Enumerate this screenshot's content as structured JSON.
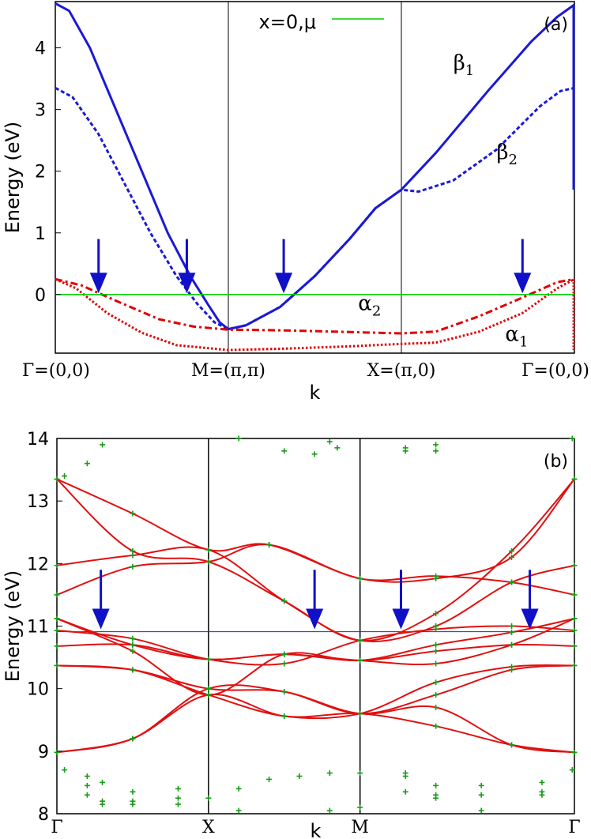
{
  "chart_data": [
    {
      "panel_label": "(a)",
      "type": "line",
      "xlabel": "k",
      "ylabel": "Energy (eV)",
      "ylim": [
        -0.95,
        4.75
      ],
      "yticks": [
        "0",
        "1",
        "2",
        "3",
        "4"
      ],
      "ytick_values": [
        0,
        1,
        2,
        3,
        4
      ],
      "kpoint_labels": [
        "Γ=(0,0)",
        "M=(π,π)",
        "X=(π,0)",
        "Γ=(0,0)"
      ],
      "kpoint_positions": [
        0,
        1,
        2,
        3
      ],
      "legend": {
        "label": "x=0,μ",
        "color": "#00d000",
        "placement": "top-center"
      },
      "series": [
        {
          "name": "β1",
          "color": "#1a1ad6",
          "style": "solid",
          "sub": "1",
          "points": [
            [
              0,
              4.72
            ],
            [
              0.08,
              4.6
            ],
            [
              0.2,
              4.0
            ],
            [
              0.35,
              3.0
            ],
            [
              0.5,
              2.0
            ],
            [
              0.65,
              1.0
            ],
            [
              0.78,
              0.3
            ],
            [
              0.88,
              -0.15
            ],
            [
              0.95,
              -0.45
            ],
            [
              1.0,
              -0.56
            ],
            [
              1.1,
              -0.5
            ],
            [
              1.3,
              -0.2
            ],
            [
              1.5,
              0.3
            ],
            [
              1.7,
              0.9
            ],
            [
              1.85,
              1.4
            ],
            [
              2.0,
              1.7
            ],
            [
              2.2,
              2.3
            ],
            [
              2.5,
              3.3
            ],
            [
              2.75,
              4.1
            ],
            [
              2.9,
              4.5
            ],
            [
              3.0,
              4.7
            ]
          ]
        },
        {
          "name": "β2",
          "color": "#1a1ad6",
          "style": "dashed",
          "sub": "2",
          "points": [
            [
              0,
              3.35
            ],
            [
              0.1,
              3.2
            ],
            [
              0.25,
              2.6
            ],
            [
              0.4,
              1.8
            ],
            [
              0.55,
              1.0
            ],
            [
              0.7,
              0.3
            ],
            [
              0.82,
              -0.15
            ],
            [
              0.92,
              -0.45
            ],
            [
              1.0,
              -0.56
            ],
            [
              1.1,
              -0.5
            ],
            [
              1.3,
              -0.2
            ],
            [
              1.5,
              0.3
            ],
            [
              1.7,
              0.9
            ],
            [
              1.85,
              1.4
            ],
            [
              2.0,
              1.7
            ],
            [
              2.1,
              1.67
            ],
            [
              2.3,
              1.85
            ],
            [
              2.55,
              2.35
            ],
            [
              2.8,
              3.05
            ],
            [
              2.92,
              3.3
            ],
            [
              3.0,
              3.35
            ]
          ]
        },
        {
          "name": "α2",
          "color": "#e00000",
          "style": "dashdot",
          "sub": "2",
          "points": [
            [
              0,
              0.25
            ],
            [
              0.15,
              0.15
            ],
            [
              0.35,
              -0.1
            ],
            [
              0.6,
              -0.4
            ],
            [
              0.8,
              -0.52
            ],
            [
              1.0,
              -0.57
            ],
            [
              1.3,
              -0.58
            ],
            [
              1.6,
              -0.6
            ],
            [
              2.0,
              -0.63
            ],
            [
              2.2,
              -0.6
            ],
            [
              2.45,
              -0.35
            ],
            [
              2.7,
              -0.05
            ],
            [
              2.9,
              0.2
            ],
            [
              3.0,
              0.25
            ]
          ]
        },
        {
          "name": "α1",
          "color": "#e00000",
          "style": "dotted",
          "sub": "1",
          "points": [
            [
              0,
              0.25
            ],
            [
              0.12,
              0.1
            ],
            [
              0.3,
              -0.3
            ],
            [
              0.5,
              -0.62
            ],
            [
              0.7,
              -0.82
            ],
            [
              1.0,
              -0.9
            ],
            [
              1.3,
              -0.88
            ],
            [
              1.7,
              -0.84
            ],
            [
              2.0,
              -0.8
            ],
            [
              2.2,
              -0.78
            ],
            [
              2.45,
              -0.6
            ],
            [
              2.7,
              -0.3
            ],
            [
              2.9,
              0.1
            ],
            [
              3.0,
              0.25
            ]
          ]
        },
        {
          "name": "μ",
          "color": "#00d000",
          "style": "solid",
          "points": [
            [
              0,
              0
            ],
            [
              3.0,
              0
            ]
          ]
        }
      ],
      "arrow_kpos": [
        0.25,
        0.76,
        1.32,
        2.7
      ],
      "arrow_top": 0.9,
      "arrow_bottom": 0.02,
      "annotations": [
        {
          "base": "β",
          "sub": "1",
          "at": [
            2.3,
            3.65
          ]
        },
        {
          "base": "β",
          "sub": "2",
          "at": [
            2.55,
            2.2
          ]
        },
        {
          "base": "α",
          "sub": "2",
          "at": [
            1.75,
            -0.25
          ]
        },
        {
          "base": "α",
          "sub": "1",
          "at": [
            2.6,
            -0.75
          ]
        }
      ]
    },
    {
      "panel_label": "(b)",
      "type": "line",
      "xlabel": "k",
      "ylabel": "Energy (eV)",
      "ylim": [
        8,
        14
      ],
      "yticks": [
        "8",
        "9",
        "10",
        "11",
        "12",
        "13",
        "14"
      ],
      "ytick_values": [
        8,
        9,
        10,
        11,
        12,
        13,
        14
      ],
      "kpoint_labels": [
        "Γ",
        "X",
        "M",
        "Γ"
      ],
      "kpoint_positions": [
        0,
        1,
        2,
        3.4142
      ],
      "fermi_level": 10.91,
      "fermi_color": "#2020d0",
      "band_color": "#e01010",
      "marker_color": "#1a9a1a",
      "bands": [
        [
          [
            0,
            13.35
          ],
          [
            0.5,
            12.8
          ],
          [
            1,
            12.22
          ],
          [
            1.4,
            12.3
          ],
          [
            2,
            11.76
          ],
          [
            2.5,
            11.76
          ],
          [
            3.0,
            12.1
          ],
          [
            3.4142,
            13.35
          ]
        ],
        [
          [
            0,
            13.35
          ],
          [
            0.5,
            12.2
          ],
          [
            1,
            12.03
          ],
          [
            1.5,
            11.4
          ],
          [
            2,
            10.77
          ],
          [
            2.5,
            11.2
          ],
          [
            3.0,
            12.2
          ],
          [
            3.4142,
            13.35
          ]
        ],
        [
          [
            0,
            11.97
          ],
          [
            0.5,
            12.13
          ],
          [
            1,
            12.22
          ],
          [
            1.5,
            11.4
          ],
          [
            2,
            10.77
          ],
          [
            2.5,
            11.0
          ],
          [
            3.0,
            11.7
          ],
          [
            3.4142,
            11.97
          ]
        ],
        [
          [
            0,
            11.5
          ],
          [
            0.5,
            11.95
          ],
          [
            1,
            12.03
          ],
          [
            1.4,
            12.3
          ],
          [
            2,
            11.76
          ],
          [
            2.5,
            11.8
          ],
          [
            3.0,
            11.7
          ],
          [
            3.4142,
            11.5
          ]
        ],
        [
          [
            0,
            11.12
          ],
          [
            0.5,
            10.7
          ],
          [
            1,
            10.47
          ],
          [
            1.5,
            10.55
          ],
          [
            2,
            10.45
          ],
          [
            2.5,
            10.4
          ],
          [
            3.0,
            10.7
          ],
          [
            3.4142,
            11.12
          ]
        ],
        [
          [
            0,
            11.12
          ],
          [
            0.5,
            10.6
          ],
          [
            1,
            9.9
          ],
          [
            1.5,
            10.55
          ],
          [
            2,
            10.45
          ],
          [
            2.5,
            10.7
          ],
          [
            3.0,
            10.9
          ],
          [
            3.4142,
            11.12
          ]
        ],
        [
          [
            0,
            10.93
          ],
          [
            0.5,
            10.8
          ],
          [
            1,
            10.47
          ],
          [
            1.5,
            10.4
          ],
          [
            2,
            10.77
          ],
          [
            2.5,
            10.95
          ],
          [
            3.0,
            11.0
          ],
          [
            3.4142,
            10.93
          ]
        ],
        [
          [
            0,
            10.68
          ],
          [
            0.5,
            10.7
          ],
          [
            1,
            10.47
          ],
          [
            1.5,
            10.55
          ],
          [
            2,
            10.45
          ],
          [
            2.5,
            10.6
          ],
          [
            3.0,
            10.7
          ],
          [
            3.4142,
            10.68
          ]
        ],
        [
          [
            0,
            10.37
          ],
          [
            0.5,
            10.3
          ],
          [
            1,
            10.0
          ],
          [
            1.5,
            9.95
          ],
          [
            2,
            9.6
          ],
          [
            2.5,
            9.9
          ],
          [
            3.0,
            10.3
          ],
          [
            3.4142,
            10.37
          ]
        ],
        [
          [
            0,
            10.37
          ],
          [
            0.5,
            10.3
          ],
          [
            1,
            9.9
          ],
          [
            1.5,
            9.56
          ],
          [
            2,
            9.6
          ],
          [
            2.5,
            10.1
          ],
          [
            3.0,
            10.35
          ],
          [
            3.4142,
            10.37
          ]
        ],
        [
          [
            0,
            8.98
          ],
          [
            0.5,
            9.2
          ],
          [
            1,
            9.9
          ],
          [
            1.5,
            9.56
          ],
          [
            2,
            9.6
          ],
          [
            2.5,
            9.4
          ],
          [
            3.0,
            9.1
          ],
          [
            3.4142,
            8.98
          ]
        ],
        [
          [
            0,
            8.98
          ],
          [
            0.5,
            9.2
          ],
          [
            1,
            10.0
          ],
          [
            1.5,
            9.95
          ],
          [
            2,
            9.6
          ],
          [
            2.5,
            9.7
          ],
          [
            3.0,
            9.1
          ],
          [
            3.4142,
            8.98
          ]
        ]
      ],
      "scatter_extra": [
        [
          0.05,
          13.4
        ],
        [
          0.2,
          13.6
        ],
        [
          0.3,
          13.9
        ],
        [
          0.05,
          8.7
        ],
        [
          0.2,
          8.6
        ],
        [
          0.2,
          8.45
        ],
        [
          0.2,
          8.3
        ],
        [
          0.3,
          8.2
        ],
        [
          0.3,
          8.15
        ],
        [
          0.3,
          8.5
        ],
        [
          0.5,
          8.35
        ],
        [
          0.5,
          8.15
        ],
        [
          0.5,
          8.2
        ],
        [
          0.8,
          8.4
        ],
        [
          0.8,
          8.25
        ],
        [
          0.8,
          8.15
        ],
        [
          1,
          8.25
        ],
        [
          1.2,
          8.4
        ],
        [
          1.2,
          8.05
        ],
        [
          1.4,
          8.55
        ],
        [
          1.6,
          8.6
        ],
        [
          1.8,
          8.65
        ],
        [
          1.8,
          8.05
        ],
        [
          2,
          8.65
        ],
        [
          2,
          8.1
        ],
        [
          1.2,
          14.0
        ],
        [
          1.5,
          13.8
        ],
        [
          1.7,
          13.75
        ],
        [
          1.8,
          13.95
        ],
        [
          1.85,
          13.85
        ],
        [
          2.3,
          13.85
        ],
        [
          2.3,
          13.8
        ],
        [
          2.5,
          13.9
        ],
        [
          2.5,
          13.8
        ],
        [
          2.3,
          8.65
        ],
        [
          2.3,
          8.6
        ],
        [
          2.3,
          8.35
        ],
        [
          2.5,
          8.45
        ],
        [
          2.5,
          8.3
        ],
        [
          2.5,
          8.25
        ],
        [
          2.8,
          8.45
        ],
        [
          2.8,
          8.3
        ],
        [
          2.8,
          8.05
        ],
        [
          3.2,
          8.5
        ],
        [
          3.2,
          8.35
        ],
        [
          3.2,
          8.3
        ],
        [
          3.4,
          8.7
        ],
        [
          3.4,
          14.0
        ]
      ],
      "arrow_kpos": [
        0.29,
        1.7,
        2.27,
        3.12
      ],
      "arrow_top": 11.9,
      "arrow_bottom": 10.95
    }
  ]
}
